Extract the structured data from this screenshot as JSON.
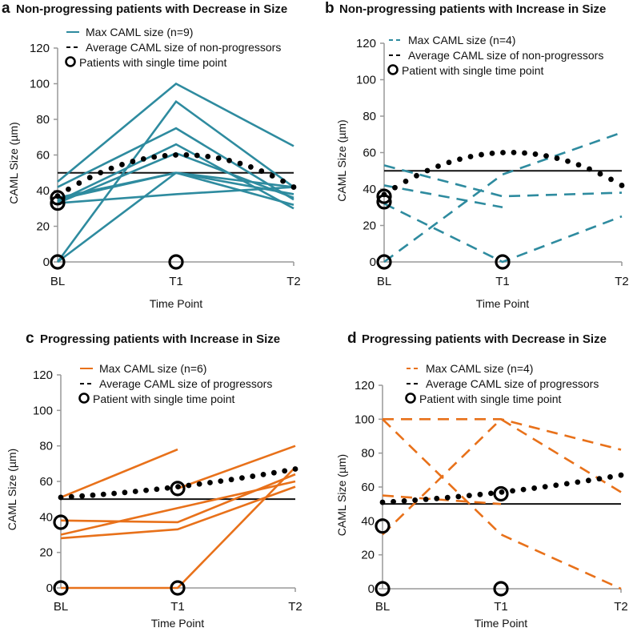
{
  "chart_data": [
    {
      "type": "line",
      "panel_letter": "a",
      "title": "Non-progressing  patients with Decrease in Size",
      "xlabel": "Time Point",
      "ylabel": "CAML Size (µm)",
      "categories": [
        "BL",
        "T1",
        "T2"
      ],
      "ylim": [
        0,
        120
      ],
      "yticks": [
        0,
        20,
        40,
        60,
        80,
        100,
        120
      ],
      "threshold": 50,
      "color": "#2e8b9f",
      "line_style": "solid",
      "legend": [
        {
          "label": "Max CAML size (n=9)",
          "kind": "series"
        },
        {
          "label": "Average  CAML size of non-progressors",
          "kind": "average"
        },
        {
          "label": "Patients with single time point",
          "kind": "circle"
        }
      ],
      "series": [
        {
          "name": "patient-1",
          "values": [
            45,
            100,
            65
          ]
        },
        {
          "name": "patient-2",
          "values": [
            0,
            90,
            42
          ]
        },
        {
          "name": "patient-3",
          "values": [
            42,
            75,
            35
          ]
        },
        {
          "name": "patient-4",
          "values": [
            34,
            66,
            30
          ]
        },
        {
          "name": "patient-5",
          "values": [
            33,
            61,
            36
          ]
        },
        {
          "name": "patient-6",
          "values": [
            35,
            50,
            42
          ]
        },
        {
          "name": "patient-7",
          "values": [
            0,
            50,
            32
          ]
        },
        {
          "name": "patient-8",
          "values": [
            36,
            50,
            38
          ]
        },
        {
          "name": "patient-9",
          "values": [
            33,
            38,
            42
          ]
        }
      ],
      "average": [
        37,
        60,
        42
      ],
      "single_points": [
        {
          "x": "BL",
          "y": 0
        },
        {
          "x": "BL",
          "y": 33
        },
        {
          "x": "BL",
          "y": 36
        },
        {
          "x": "T1",
          "y": 0
        }
      ]
    },
    {
      "type": "line",
      "panel_letter": "b",
      "title": "Non-progressing  patients with Increase in Size",
      "xlabel": "Time Point",
      "ylabel": "CAML Size (µm)",
      "categories": [
        "BL",
        "T1",
        "T2"
      ],
      "ylim": [
        0,
        120
      ],
      "yticks": [
        0,
        20,
        40,
        60,
        80,
        100,
        120
      ],
      "threshold": 50,
      "color": "#2e8b9f",
      "line_style": "dashed",
      "legend": [
        {
          "label": "Max CAML size (n=4)",
          "kind": "series"
        },
        {
          "label": "Average  CAML size of non-progressors",
          "kind": "average"
        },
        {
          "label": "Patient with single time point",
          "kind": "circle"
        }
      ],
      "series": [
        {
          "name": "patient-1",
          "values": [
            53,
            36,
            38
          ]
        },
        {
          "name": "patient-2",
          "values": [
            42,
            30,
            null
          ]
        },
        {
          "name": "patient-3",
          "values": [
            32,
            0,
            25
          ]
        },
        {
          "name": "patient-4",
          "values": [
            0,
            48,
            71
          ]
        }
      ],
      "average": [
        37,
        60,
        42
      ],
      "single_points": [
        {
          "x": "BL",
          "y": 0
        },
        {
          "x": "BL",
          "y": 33
        },
        {
          "x": "BL",
          "y": 36
        },
        {
          "x": "T1",
          "y": 0
        }
      ]
    },
    {
      "type": "line",
      "panel_letter": "c",
      "title": "Progressing  patients with Increase in Size",
      "xlabel": "Time Point",
      "ylabel": "CAML Size (µm)",
      "categories": [
        "BL",
        "T1",
        "T2"
      ],
      "ylim": [
        0,
        120
      ],
      "yticks": [
        0,
        20,
        40,
        60,
        80,
        100,
        120
      ],
      "threshold": 50,
      "color": "#e8711a",
      "line_style": "solid",
      "legend": [
        {
          "label": "Max CAML size (n=6)",
          "kind": "series"
        },
        {
          "label": "Average  CAML size of progressors",
          "kind": "average"
        },
        {
          "label": "Patient with single time point",
          "kind": "circle"
        }
      ],
      "series": [
        {
          "name": "patient-1",
          "values": [
            51,
            78,
            null
          ]
        },
        {
          "name": "patient-2",
          "values": [
            null,
            56,
            80
          ]
        },
        {
          "name": "patient-3",
          "values": [
            38,
            37,
            64
          ]
        },
        {
          "name": "patient-4",
          "values": [
            30,
            45,
            60
          ]
        },
        {
          "name": "patient-5",
          "values": [
            28,
            33,
            57
          ]
        },
        {
          "name": "patient-6",
          "values": [
            0,
            0,
            68
          ]
        }
      ],
      "average": [
        51,
        57,
        67
      ],
      "single_points": [
        {
          "x": "BL",
          "y": 0
        },
        {
          "x": "BL",
          "y": 37
        },
        {
          "x": "T1",
          "y": 0
        },
        {
          "x": "T1",
          "y": 56
        }
      ]
    },
    {
      "type": "line",
      "panel_letter": "d",
      "title": "Progressing   patients with Decrease in Size",
      "xlabel": "Time Point",
      "ylabel": "CAML Size (µm)",
      "categories": [
        "BL",
        "T1",
        "T2"
      ],
      "ylim": [
        0,
        120
      ],
      "yticks": [
        0,
        20,
        40,
        60,
        80,
        100,
        120
      ],
      "threshold": 50,
      "color": "#e8711a",
      "line_style": "dashed",
      "legend": [
        {
          "label": "Max CAML size (n=4)",
          "kind": "series"
        },
        {
          "label": "Average  CAML size of progressors",
          "kind": "average"
        },
        {
          "label": "Patient with single time point",
          "kind": "circle"
        }
      ],
      "series": [
        {
          "name": "patient-1",
          "values": [
            100,
            100,
            82
          ]
        },
        {
          "name": "patient-2",
          "values": [
            100,
            32,
            0
          ]
        },
        {
          "name": "patient-3",
          "values": [
            32,
            100,
            57
          ]
        },
        {
          "name": "patient-4",
          "values": [
            55,
            50,
            null
          ]
        }
      ],
      "average": [
        51,
        57,
        67
      ],
      "single_points": [
        {
          "x": "BL",
          "y": 0
        },
        {
          "x": "BL",
          "y": 37
        },
        {
          "x": "T1",
          "y": 0
        },
        {
          "x": "T1",
          "y": 56
        }
      ]
    }
  ]
}
